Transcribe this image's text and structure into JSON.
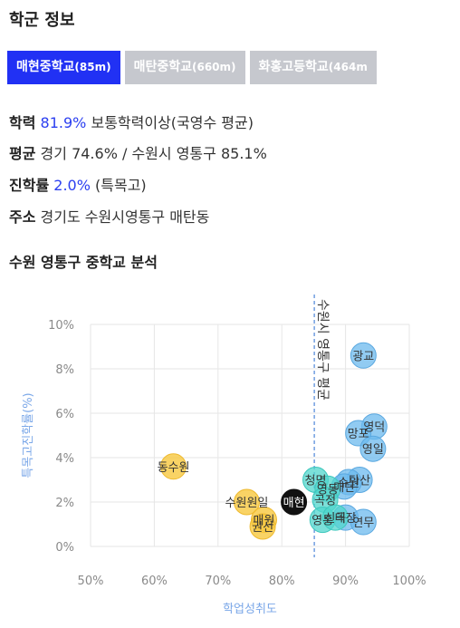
{
  "page_title": "학군 정보",
  "tabs": [
    {
      "label": "매현중학교",
      "distance": "(85m)",
      "active": true
    },
    {
      "label": "매탄중학교",
      "distance": "(660m)",
      "active": false
    },
    {
      "label": "화홍고등학교",
      "distance": "(464m",
      "active": false
    }
  ],
  "info": {
    "academic_label": "학력",
    "academic_value": "81.9%",
    "academic_desc": "보통학력이상(국영수 평균)",
    "average_label": "평균",
    "average_desc": "경기 74.6% / 수원시 영통구 85.1%",
    "advance_label": "진학률",
    "advance_value": "2.0%",
    "advance_desc": "(특목고)",
    "address_label": "주소",
    "address_desc": "경기도 수원시영통구 매탄동"
  },
  "section_title": "수원 영통구 중학교 분석",
  "colors": {
    "active_tab": "#2131f4",
    "inactive_tab": "#c6c8ce",
    "highlight": "#2b3ff0",
    "axis_label": "#7aa7e8"
  },
  "chart_data": {
    "type": "scatter",
    "xlabel": "학업성취도",
    "ylabel": "특목고진학률(%)",
    "xlim": [
      50,
      100
    ],
    "ylim": [
      0,
      10
    ],
    "x_ticks": [
      "50%",
      "60%",
      "70%",
      "80%",
      "90%",
      "100%"
    ],
    "y_ticks": [
      "0%",
      "2%",
      "4%",
      "6%",
      "8%",
      "10%"
    ],
    "reference_line": {
      "x": 85.1,
      "label": "수원시 영통구 평균"
    },
    "points": [
      {
        "name": "광교",
        "x": 92.8,
        "y": 8.6,
        "group": "blue"
      },
      {
        "name": "영덕",
        "x": 94.5,
        "y": 5.4,
        "group": "blue"
      },
      {
        "name": "망포",
        "x": 92.0,
        "y": 5.1,
        "group": "blue"
      },
      {
        "name": "영일",
        "x": 94.3,
        "y": 4.4,
        "group": "blue"
      },
      {
        "name": "다산",
        "x": 92.2,
        "y": 3.0,
        "group": "blue"
      },
      {
        "name": "수원",
        "x": 90.5,
        "y": 2.9,
        "group": "blue"
      },
      {
        "name": "매탄",
        "x": 89.8,
        "y": 2.7,
        "group": "blue"
      },
      {
        "name": "태장",
        "x": 90.0,
        "y": 1.3,
        "group": "blue"
      },
      {
        "name": "연무",
        "x": 92.8,
        "y": 1.1,
        "group": "blue"
      },
      {
        "name": "동수원",
        "x": 63.0,
        "y": 3.6,
        "group": "yellow"
      },
      {
        "name": "수원원일",
        "x": 74.5,
        "y": 2.0,
        "group": "yellow"
      },
      {
        "name": "매원",
        "x": 77.2,
        "y": 1.2,
        "group": "yellow"
      },
      {
        "name": "권선",
        "x": 77.0,
        "y": 0.9,
        "group": "yellow"
      },
      {
        "name": "청명",
        "x": 85.3,
        "y": 3.0,
        "group": "teal"
      },
      {
        "name": "영동",
        "x": 87.2,
        "y": 2.6,
        "group": "teal"
      },
      {
        "name": "곡정",
        "x": 86.8,
        "y": 2.1,
        "group": "teal"
      },
      {
        "name": "영통",
        "x": 86.4,
        "y": 1.2,
        "group": "teal"
      },
      {
        "name": "신곡",
        "x": 88.4,
        "y": 1.3,
        "group": "teal"
      },
      {
        "name": "매현",
        "x": 81.9,
        "y": 2.0,
        "group": "self"
      }
    ]
  }
}
